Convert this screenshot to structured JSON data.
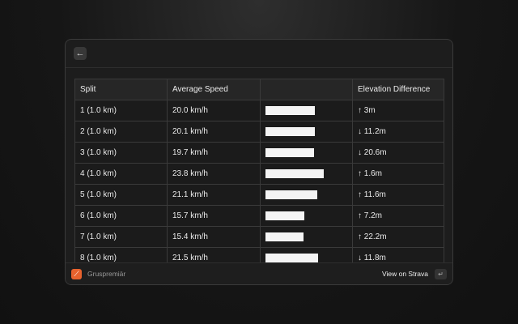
{
  "header": {
    "back_icon": "arrow-left-icon"
  },
  "table": {
    "columns": [
      "Split",
      "Average Speed",
      "",
      "Elevation Difference"
    ],
    "rows": [
      {
        "split": "1 (1.0 km)",
        "speed": "20.0 km/h",
        "speed_value": 20.0,
        "elev": "↑ 3m"
      },
      {
        "split": "2 (1.0 km)",
        "speed": "20.1 km/h",
        "speed_value": 20.1,
        "elev": "↓ 11.2m"
      },
      {
        "split": "3 (1.0 km)",
        "speed": "19.7 km/h",
        "speed_value": 19.7,
        "elev": "↓ 20.6m"
      },
      {
        "split": "4 (1.0 km)",
        "speed": "23.8 km/h",
        "speed_value": 23.8,
        "elev": "↑ 1.6m"
      },
      {
        "split": "5 (1.0 km)",
        "speed": "21.1 km/h",
        "speed_value": 21.1,
        "elev": "↑ 11.6m"
      },
      {
        "split": "6 (1.0 km)",
        "speed": "15.7 km/h",
        "speed_value": 15.7,
        "elev": "↑ 7.2m"
      },
      {
        "split": "7 (1.0 km)",
        "speed": "15.4 km/h",
        "speed_value": 15.4,
        "elev": "↑ 22.2m"
      },
      {
        "split": "8 (1.0 km)",
        "speed": "21.5 km/h",
        "speed_value": 21.5,
        "elev": "↓ 11.8m"
      }
    ]
  },
  "footer": {
    "app_name": "Gruspremiär",
    "action": "View on Strava",
    "enter_icon": "return-key-icon",
    "accent": "#e8622d"
  }
}
